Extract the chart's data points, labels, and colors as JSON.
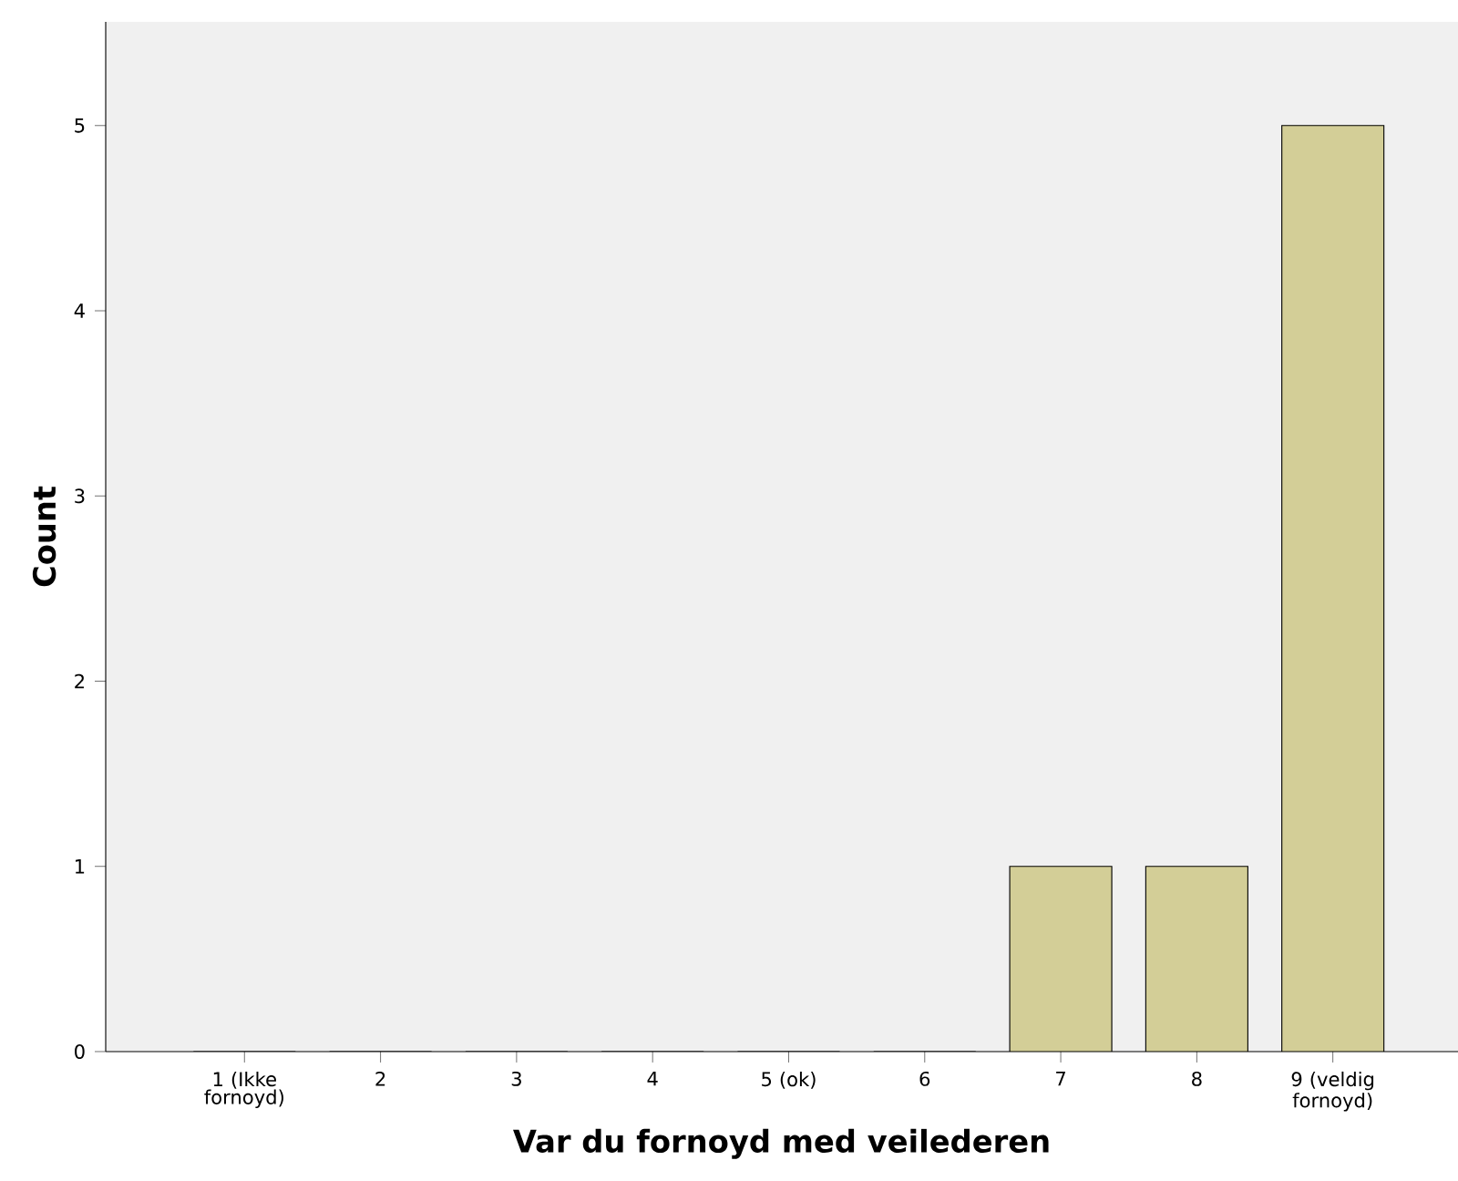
{
  "chart_data": {
    "type": "bar",
    "xlabel": "Var du fornoyd med veilederen",
    "ylabel": "Count",
    "categories": [
      "1 (Ikke fornoyd)",
      "2",
      "3",
      "4",
      "5 (ok)",
      "6",
      "7",
      "8",
      "9 (veldig fornoyd)"
    ],
    "values": [
      0,
      0,
      0,
      0,
      0,
      0,
      1,
      1,
      5
    ],
    "color": "#d3ce97",
    "ylim": [
      0,
      5.56
    ],
    "yticks": [
      0,
      1,
      2,
      3,
      4,
      5
    ]
  }
}
